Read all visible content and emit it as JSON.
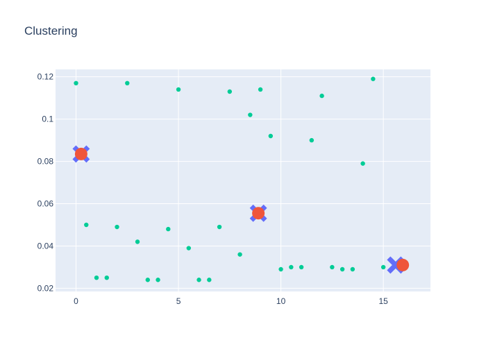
{
  "chart_data": {
    "type": "scatter",
    "title": "Clustering",
    "xlabel": "",
    "ylabel": "",
    "xlim": [
      -1.0,
      17.3
    ],
    "ylim": [
      0.0185,
      0.1235
    ],
    "x_ticks": [
      0,
      5,
      10,
      15
    ],
    "y_ticks": [
      0.02,
      0.04,
      0.06,
      0.08,
      0.1,
      0.12
    ],
    "x_tick_labels": [
      "0",
      "5",
      "10",
      "15"
    ],
    "y_tick_labels": [
      "0.02",
      "0.04",
      "0.06",
      "0.08",
      "0.1",
      "0.12"
    ],
    "grid": true,
    "legend": "none",
    "colors": {
      "plot_bg": "#e5ecf6",
      "grid": "#ffffff",
      "points": "#00cc96",
      "centroid_x": "#636efa",
      "centroid_dot": "#ef553b"
    },
    "series": [
      {
        "marker": "circle",
        "x": [
          0,
          0.5,
          1,
          1.5,
          2,
          2.5,
          3,
          3.5,
          4,
          4.5,
          5,
          5.5,
          6,
          6.5,
          7,
          7.5,
          8,
          8.5,
          9,
          9.5,
          10,
          10.5,
          11,
          11.5,
          12,
          12.5,
          13,
          13.5,
          14,
          14.5,
          15
        ],
        "y": [
          0.117,
          0.05,
          0.025,
          0.025,
          0.049,
          0.117,
          0.042,
          0.024,
          0.024,
          0.048,
          0.114,
          0.039,
          0.024,
          0.024,
          0.049,
          0.113,
          0.036,
          0.102,
          0.114,
          0.092,
          0.029,
          0.03,
          0.03,
          0.09,
          0.111,
          0.03,
          0.029,
          0.029,
          0.079,
          0.119,
          0.03
        ]
      },
      {
        "marker": "x",
        "x": [
          0.25,
          8.9,
          15.6
        ],
        "y": [
          0.0835,
          0.0555,
          0.031
        ]
      },
      {
        "marker": "circle-large",
        "x": [
          0.25,
          8.9,
          15.95
        ],
        "y": [
          0.0835,
          0.0555,
          0.031
        ]
      }
    ]
  }
}
